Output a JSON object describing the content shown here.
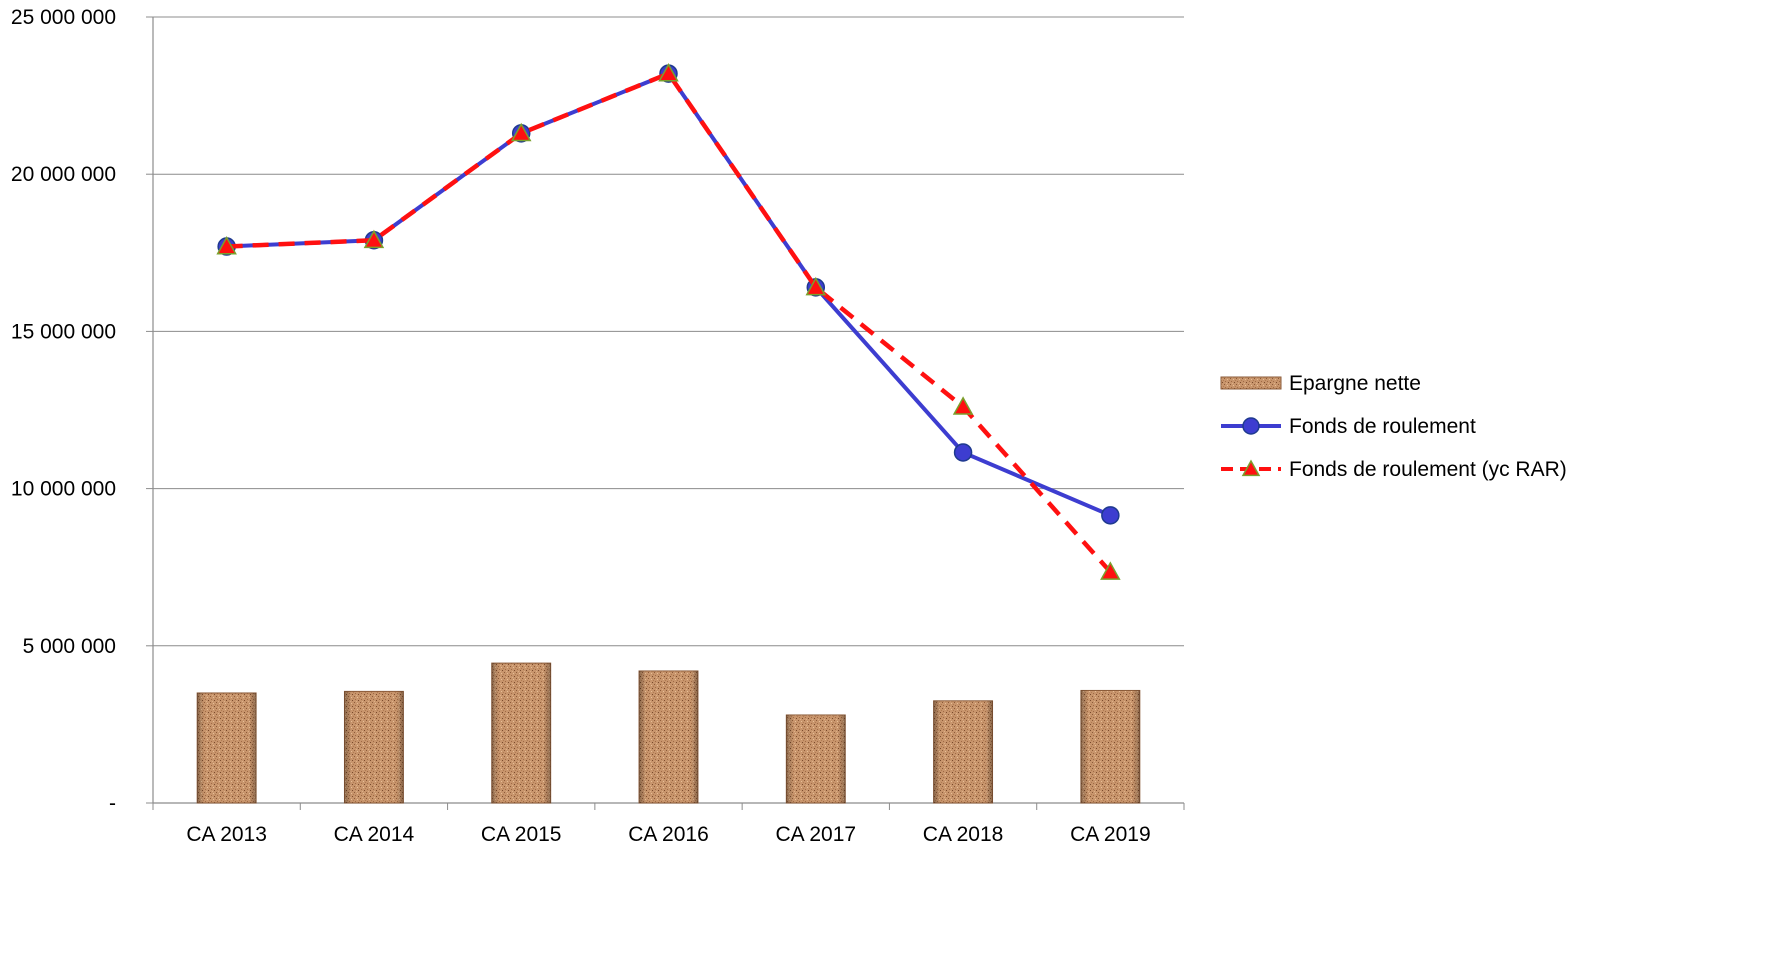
{
  "chart_data": {
    "type": "bar",
    "title": "",
    "xlabel": "",
    "ylabel": "",
    "categories": [
      "CA 2013",
      "CA 2014",
      "CA 2015",
      "CA 2016",
      "CA 2017",
      "CA 2018",
      "CA 2019"
    ],
    "ylim": [
      0,
      25000000
    ],
    "yticks": [
      {
        "value": 0,
        "label": "-"
      },
      {
        "value": 5000000,
        "label": "5 000 000"
      },
      {
        "value": 10000000,
        "label": "10 000 000"
      },
      {
        "value": 15000000,
        "label": "15 000 000"
      },
      {
        "value": 20000000,
        "label": "20 000 000"
      },
      {
        "value": 25000000,
        "label": "25 000 000"
      }
    ],
    "grid": true,
    "legend_position": "right",
    "series": [
      {
        "name": "Epargne nette",
        "type": "bar",
        "color": "#c8956c",
        "values": [
          3500000,
          3550000,
          4450000,
          4200000,
          2800000,
          3250000,
          3580000
        ]
      },
      {
        "name": "Fonds de roulement",
        "type": "line",
        "color": "#3d3dd0",
        "marker": "circle",
        "values": [
          17700000,
          17900000,
          21300000,
          23200000,
          16400000,
          11150000,
          9150000
        ]
      },
      {
        "name": "Fonds de roulement (yc RAR)",
        "type": "line",
        "color": "#ff1010",
        "marker": "triangle",
        "dashed": true,
        "values": [
          17700000,
          17900000,
          21300000,
          23200000,
          16400000,
          12600000,
          7350000
        ]
      }
    ]
  }
}
